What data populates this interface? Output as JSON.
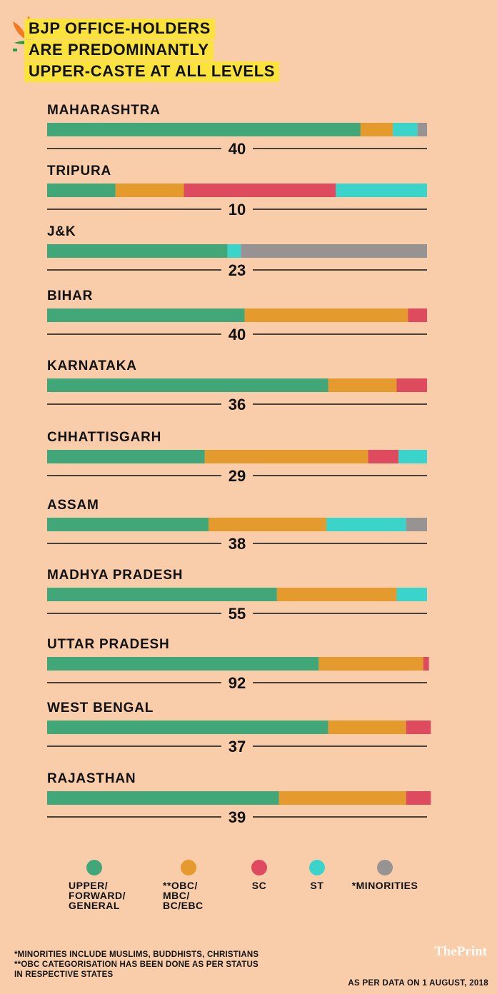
{
  "title_lines": [
    "BJP OFFICE-HOLDERS",
    "ARE PREDOMINANTLY",
    "UPPER-CASTE AT ALL LEVELS"
  ],
  "colors": {
    "upper": "#41a778",
    "obc": "#e59a2e",
    "sc": "#de4b5f",
    "st": "#3bd4cb",
    "minorities": "#979392",
    "background": "#f9cdaa",
    "title_highlight": "#fbe33b",
    "logo_orange": "#f47a21",
    "logo_green": "#2f9a3c"
  },
  "chart_data": {
    "type": "bar",
    "orientation": "horizontal",
    "stacked": true,
    "normalized": true,
    "title": "BJP OFFICE-HOLDERS ARE PREDOMINANTLY UPPER-CASTE AT ALL LEVELS",
    "xlim": [
      0,
      100
    ],
    "categories": [
      "MAHARASHTRA",
      "TRIPURA",
      "J&K",
      "BIHAR",
      "KARNATAKA",
      "CHHATTISGARH",
      "ASSAM",
      "MADHYA PRADESH",
      "UTTAR PRADESH",
      "WEST BENGAL",
      "RAJASTHAN"
    ],
    "totals": [
      "40",
      "10",
      "23",
      "40",
      "36",
      "29",
      "38",
      "55",
      "92",
      "37",
      "39"
    ],
    "series": [
      {
        "name": "UPPER/ FORWARD/ GENERAL",
        "color_key": "upper",
        "values": [
          82.5,
          18,
          47.5,
          52,
          74,
          41.5,
          42.5,
          60.5,
          71.5,
          74,
          61
        ]
      },
      {
        "name": "**OBC/ MBC/ BC/EBC",
        "color_key": "obc",
        "values": [
          8.5,
          18,
          0,
          43,
          18,
          43,
          31,
          31.5,
          27.5,
          20.5,
          33.5
        ]
      },
      {
        "name": "SC",
        "color_key": "sc",
        "values": [
          0,
          40,
          0,
          5,
          8,
          8,
          0,
          0,
          1.5,
          6.5,
          6.5
        ]
      },
      {
        "name": "ST",
        "color_key": "st",
        "values": [
          6.5,
          24,
          3.5,
          0,
          0,
          7.5,
          21,
          8,
          0,
          0,
          0
        ]
      },
      {
        "name": "*MINORITIES",
        "color_key": "minorities",
        "values": [
          2.5,
          0,
          49,
          0,
          0,
          0,
          5.5,
          0,
          0,
          0,
          0
        ]
      }
    ]
  },
  "legend": [
    {
      "lines": [
        "UPPER/",
        "FORWARD/",
        "GENERAL"
      ],
      "color_key": "upper"
    },
    {
      "lines": [
        "**OBC/",
        "MBC/",
        "BC/EBC"
      ],
      "color_key": "obc"
    },
    {
      "lines": [
        "SC"
      ],
      "color_key": "sc"
    },
    {
      "lines": [
        "ST"
      ],
      "color_key": "st"
    },
    {
      "lines": [
        "*MINORITIES"
      ],
      "color_key": "minorities"
    }
  ],
  "notes": [
    "*MINORITIES INCLUDE MUSLIMS, BUDDHISTS, CHRISTIANS",
    "**OBC CATEGORISATION HAS BEEN DONE AS PER STATUS",
    "IN RESPECTIVE STATES"
  ],
  "brand": "ThePrint",
  "as_of": "AS PER DATA ON 1 AUGUST, 2018"
}
